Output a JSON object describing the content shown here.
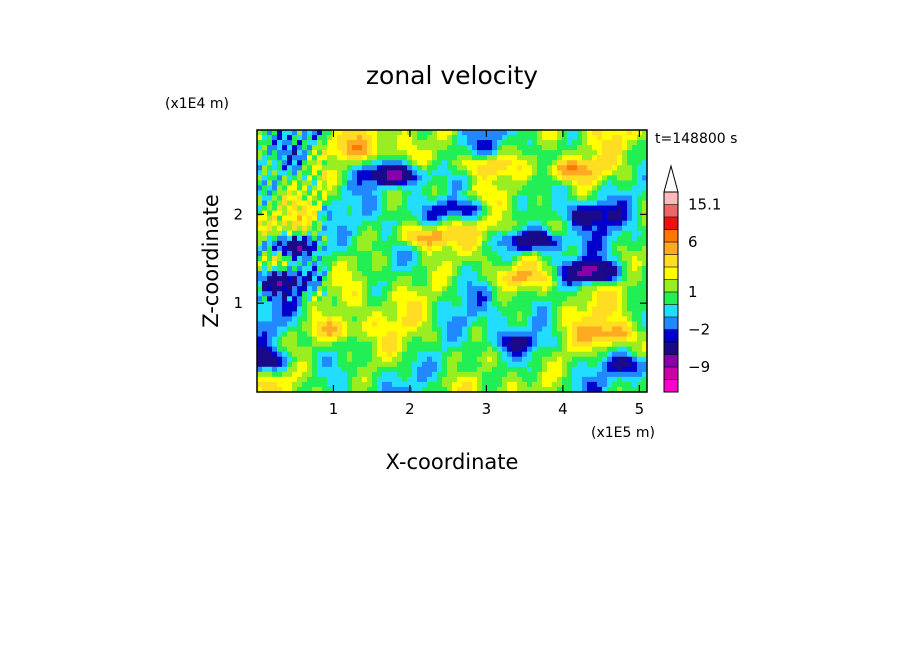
{
  "chart_data": {
    "type": "heatmap",
    "title": "zonal velocity",
    "xlabel": "X-coordinate",
    "ylabel": "Z-coordinate",
    "x_unit": "(x1E5 m)",
    "y_unit": "(x1E4 m)",
    "time_label": "t=148800 s",
    "xlim": [
      0,
      5.1
    ],
    "ylim": [
      0,
      2.95
    ],
    "x_ticks": [
      "1",
      "2",
      "3",
      "4",
      "5"
    ],
    "x_tick_values": [
      1,
      2,
      3,
      4,
      5
    ],
    "y_ticks": [
      "1",
      "2"
    ],
    "y_tick_values": [
      1,
      2
    ],
    "colorbar": {
      "levels": [
        -15,
        -12,
        -9,
        -6,
        -3,
        -2,
        -1,
        0,
        1,
        2,
        3,
        4.5,
        6,
        9,
        12,
        15.1
      ],
      "colors": [
        "#ff00cc",
        "#cc00aa",
        "#8800aa",
        "#1a0a8a",
        "#0000cc",
        "#2288ff",
        "#22ddff",
        "#22ee55",
        "#99ee22",
        "#ffff00",
        "#ffdd22",
        "#ffaa22",
        "#ff7700",
        "#ee1111",
        "#ee6666",
        "#ffbbbb"
      ],
      "labels": [
        "15.1",
        "6",
        "1",
        "−2",
        "−9"
      ],
      "label_values": [
        15.1,
        6,
        1,
        -2,
        -9
      ]
    },
    "field_features": [
      {
        "x": 1.8,
        "z": 2.45,
        "u": -8
      },
      {
        "x": 2.7,
        "z": 2.05,
        "u": -5
      },
      {
        "x": 4.3,
        "z": 2.0,
        "u": -4
      },
      {
        "x": 3.6,
        "z": 1.7,
        "u": -7
      },
      {
        "x": 4.4,
        "z": 1.35,
        "u": -8
      },
      {
        "x": 0.4,
        "z": 1.65,
        "u": -7
      },
      {
        "x": 0.3,
        "z": 1.25,
        "u": -5
      },
      {
        "x": 2.2,
        "z": 1.75,
        "u": 6
      },
      {
        "x": 3.0,
        "z": 2.55,
        "u": 4
      },
      {
        "x": 4.1,
        "z": 2.5,
        "u": 5
      },
      {
        "x": 3.4,
        "z": 1.3,
        "u": 4
      },
      {
        "x": 4.6,
        "z": 0.65,
        "u": 4
      },
      {
        "x": 1.0,
        "z": 0.7,
        "u": 3
      },
      {
        "x": 3.4,
        "z": 0.55,
        "u": -3
      },
      {
        "x": 0.05,
        "z": 0.35,
        "u": -6
      },
      {
        "x": 4.95,
        "z": 0.3,
        "u": -4
      },
      {
        "x": 1.3,
        "z": 2.75,
        "u": 3
      },
      {
        "x": 2.6,
        "z": 0.25,
        "u": -1.5
      }
    ]
  }
}
